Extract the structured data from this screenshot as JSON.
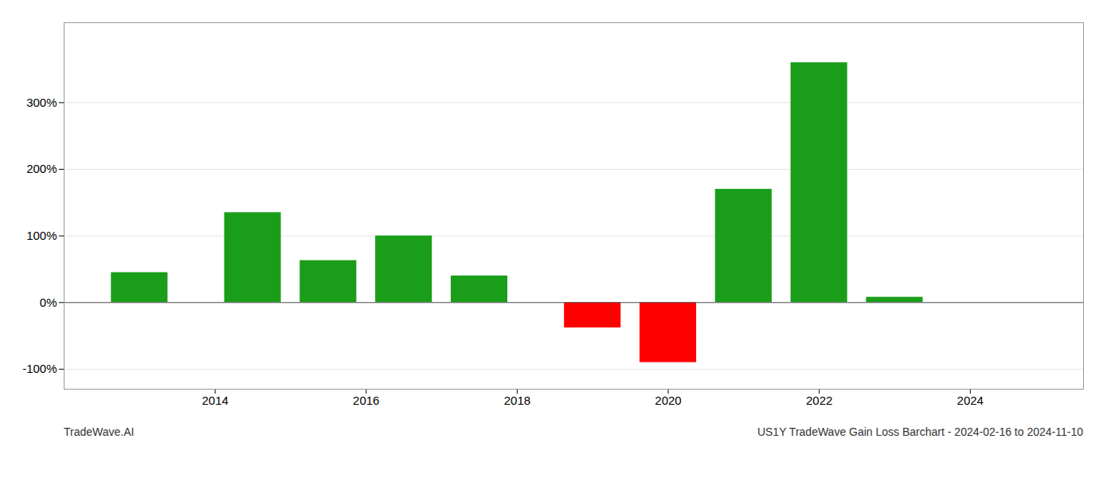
{
  "chart_data": {
    "type": "bar",
    "x": [
      2013,
      2014.5,
      2015.5,
      2016.5,
      2017.5,
      2019,
      2020,
      2021,
      2022,
      2023
    ],
    "values": [
      45,
      135,
      63,
      100,
      40,
      -38,
      -90,
      170,
      360,
      8
    ],
    "colors": [
      "#1a9e1a",
      "#1a9e1a",
      "#1a9e1a",
      "#1a9e1a",
      "#1a9e1a",
      "#ff0000",
      "#ff0000",
      "#1a9e1a",
      "#1a9e1a",
      "#1a9e1a"
    ],
    "xlim": [
      2012.0,
      2025.5
    ],
    "xticks": [
      2014,
      2016,
      2018,
      2020,
      2022,
      2024
    ],
    "ylim": [
      -130,
      420
    ],
    "yticks": [
      {
        "value": -100,
        "label": "-100%"
      },
      {
        "value": 0,
        "label": "0%"
      },
      {
        "value": 100,
        "label": "100%"
      },
      {
        "value": 200,
        "label": "200%"
      },
      {
        "value": 300,
        "label": "300%"
      }
    ],
    "grid": true,
    "annotations": [
      "TradeWave.AI",
      "US1Y TradeWave Gain Loss Barchart - 2024-02-16 to 2024-11-10"
    ]
  }
}
